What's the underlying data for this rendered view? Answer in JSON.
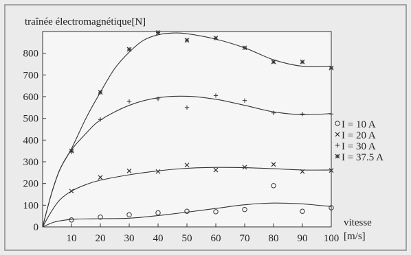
{
  "chart_data": {
    "type": "scatter",
    "title": "",
    "ylabel": "traînée électromagnétique[N]",
    "xlabel_line1": "vitesse",
    "xlabel_line2": "[m/s]",
    "xlim": [
      0,
      100
    ],
    "ylim": [
      0,
      900
    ],
    "xticks": [
      10,
      20,
      30,
      40,
      50,
      60,
      70,
      80,
      90,
      100
    ],
    "yticks": [
      0,
      100,
      200,
      300,
      400,
      500,
      600,
      700,
      800
    ],
    "grid": false,
    "legend_position": "right",
    "series": [
      {
        "name": "I = 10 A",
        "marker": "circle",
        "points": [
          [
            10,
            32
          ],
          [
            20,
            45
          ],
          [
            30,
            56
          ],
          [
            40,
            65
          ],
          [
            50,
            72
          ],
          [
            60,
            70
          ],
          [
            70,
            80
          ],
          [
            80,
            190
          ],
          [
            90,
            72
          ],
          [
            100,
            88
          ]
        ],
        "fit": [
          [
            0,
            0
          ],
          [
            4,
            22
          ],
          [
            8,
            32
          ],
          [
            12,
            36
          ],
          [
            20,
            38
          ],
          [
            30,
            40
          ],
          [
            40,
            52
          ],
          [
            50,
            68
          ],
          [
            60,
            85
          ],
          [
            70,
            102
          ],
          [
            80,
            110
          ],
          [
            90,
            106
          ],
          [
            95,
            100
          ],
          [
            100,
            94
          ]
        ]
      },
      {
        "name": "I = 20 A",
        "marker": "x",
        "points": [
          [
            10,
            165
          ],
          [
            20,
            228
          ],
          [
            30,
            258
          ],
          [
            40,
            255
          ],
          [
            50,
            285
          ],
          [
            60,
            262
          ],
          [
            70,
            275
          ],
          [
            80,
            288
          ],
          [
            90,
            255
          ],
          [
            100,
            260
          ]
        ],
        "fit": [
          [
            0,
            0
          ],
          [
            3,
            70
          ],
          [
            6,
            125
          ],
          [
            10,
            165
          ],
          [
            15,
            195
          ],
          [
            20,
            215
          ],
          [
            30,
            240
          ],
          [
            40,
            258
          ],
          [
            50,
            270
          ],
          [
            60,
            274
          ],
          [
            70,
            273
          ],
          [
            80,
            268
          ],
          [
            90,
            262
          ],
          [
            100,
            262
          ]
        ]
      },
      {
        "name": "I = 30 A",
        "marker": "plus",
        "points": [
          [
            10,
            345
          ],
          [
            20,
            495
          ],
          [
            30,
            578
          ],
          [
            40,
            590
          ],
          [
            50,
            550
          ],
          [
            60,
            605
          ],
          [
            70,
            582
          ],
          [
            80,
            525
          ],
          [
            90,
            520
          ],
          [
            100,
            520
          ]
        ],
        "fit": [
          [
            0,
            0
          ],
          [
            3,
            150
          ],
          [
            6,
            265
          ],
          [
            10,
            355
          ],
          [
            15,
            430
          ],
          [
            20,
            492
          ],
          [
            30,
            560
          ],
          [
            40,
            595
          ],
          [
            50,
            602
          ],
          [
            60,
            588
          ],
          [
            70,
            560
          ],
          [
            80,
            530
          ],
          [
            90,
            517
          ],
          [
            100,
            522
          ]
        ]
      },
      {
        "name": "I = 37.5 A",
        "marker": "star",
        "points": [
          [
            10,
            350
          ],
          [
            20,
            620
          ],
          [
            30,
            818
          ],
          [
            40,
            895
          ],
          [
            50,
            860
          ],
          [
            60,
            870
          ],
          [
            70,
            825
          ],
          [
            80,
            760
          ],
          [
            90,
            760
          ],
          [
            100,
            732
          ]
        ],
        "fit": [
          [
            0,
            0
          ],
          [
            3,
            150
          ],
          [
            6,
            265
          ],
          [
            10,
            360
          ],
          [
            15,
            500
          ],
          [
            20,
            620
          ],
          [
            25,
            730
          ],
          [
            30,
            805
          ],
          [
            35,
            860
          ],
          [
            40,
            885
          ],
          [
            45,
            893
          ],
          [
            50,
            890
          ],
          [
            60,
            865
          ],
          [
            70,
            825
          ],
          [
            80,
            770
          ],
          [
            90,
            740
          ],
          [
            100,
            740
          ]
        ]
      }
    ]
  }
}
